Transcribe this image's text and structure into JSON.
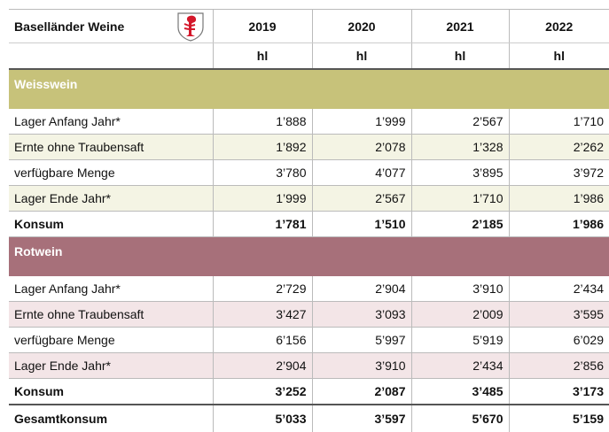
{
  "header": {
    "title": "Baselländer Weine",
    "years": [
      "2019",
      "2020",
      "2021",
      "2022"
    ],
    "units": [
      "hl",
      "hl",
      "hl",
      "hl"
    ]
  },
  "sections": [
    {
      "name": "Weisswein",
      "rows": [
        {
          "label": "Lager Anfang Jahr*",
          "values": [
            "1’888",
            "1’999",
            "2’567",
            "1’710"
          ]
        },
        {
          "label": "Ernte ohne Traubensaft",
          "values": [
            "1’892",
            "2’078",
            "1’328",
            "2’262"
          ]
        },
        {
          "label": "verfügbare Menge",
          "values": [
            "3’780",
            "4’077",
            "3’895",
            "3’972"
          ]
        },
        {
          "label": "Lager Ende Jahr*",
          "values": [
            "1’999",
            "2’567",
            "1’710",
            "1’986"
          ]
        },
        {
          "label": "Konsum",
          "values": [
            "1’781",
            "1’510",
            "2’185",
            "1’986"
          ]
        }
      ]
    },
    {
      "name": "Rotwein",
      "rows": [
        {
          "label": "Lager Anfang Jahr*",
          "values": [
            "2’729",
            "2’904",
            "3’910",
            "2’434"
          ]
        },
        {
          "label": "Ernte ohne Traubensaft",
          "values": [
            "3’427",
            "3’093",
            "2’009",
            "3’595"
          ]
        },
        {
          "label": "verfügbare Menge",
          "values": [
            "6’156",
            "5’997",
            "5’919",
            "6’029"
          ]
        },
        {
          "label": "Lager Ende Jahr*",
          "values": [
            "2’904",
            "3’910",
            "2’434",
            "2’856"
          ]
        },
        {
          "label": "Konsum",
          "values": [
            "3’252",
            "2’087",
            "3’485",
            "3’173"
          ]
        }
      ]
    }
  ],
  "total": {
    "label": "Gesamtkonsum",
    "values": [
      "5’033",
      "3’597",
      "5’670",
      "5’159"
    ]
  }
}
